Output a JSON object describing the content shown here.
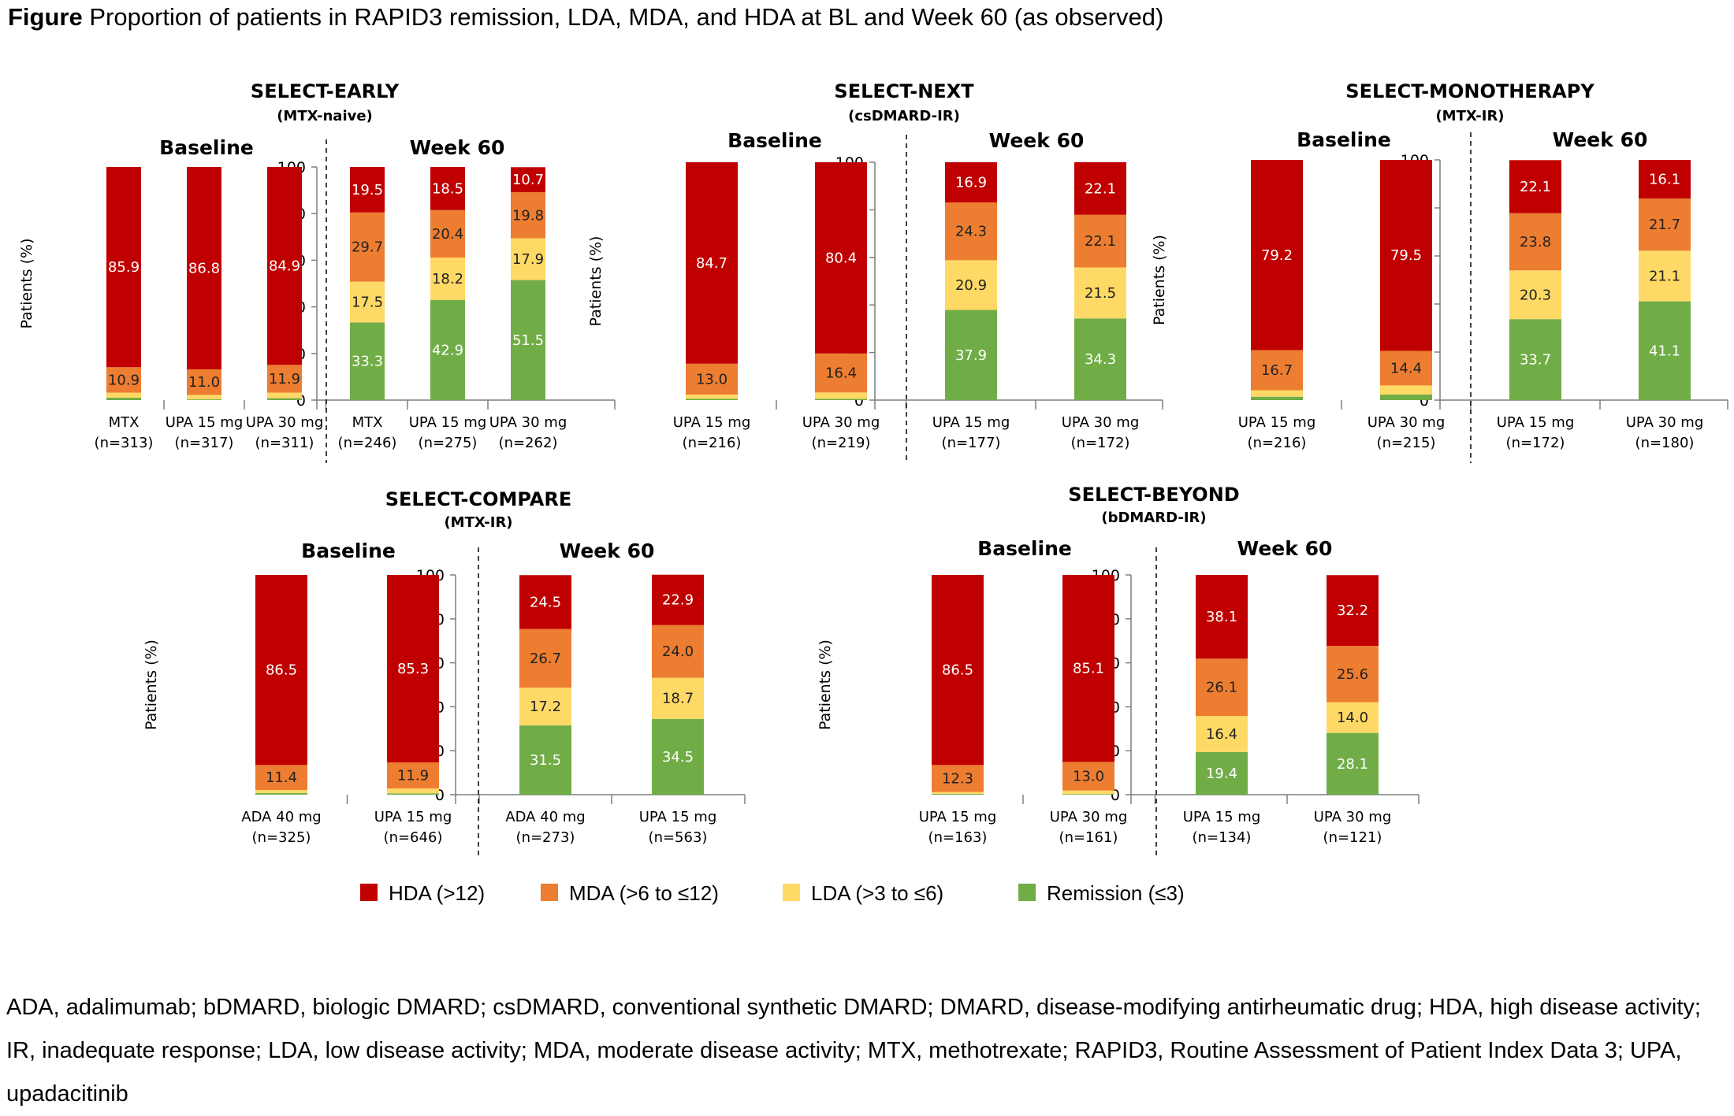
{
  "figure": {
    "label": "Figure",
    "title": "Proportion of patients in RAPID3 remission, LDA, MDA, and HDA at BL and Week 60 (as observed)"
  },
  "legend": [
    {
      "name": "HDA (>12)",
      "color": "#c00000"
    },
    {
      "name": "MDA (>6 to ≤12)",
      "color": "#ed7d31"
    },
    {
      "name": "LDA (>3 to ≤6)",
      "color": "#ffd966"
    },
    {
      "name": "Remission (≤3)",
      "color": "#70ad47"
    }
  ],
  "footnote": "ADA, adalimumab; bDMARD, biologic DMARD; csDMARD, conventional synthetic DMARD; DMARD, disease-modifying antirheumatic drug; HDA, high disease activity; IR, inadequate response; LDA, low disease activity; MDA, moderate disease activity; MTX, methotrexate; RAPID3, Routine Assessment of Patient Index Data 3; UPA, upadacitinib",
  "chart_data": [
    {
      "type": "bar",
      "stacked": true,
      "title": "SELECT-EARLY",
      "subtitle": "(MTX-naive)",
      "group_labels": [
        "Baseline",
        "Week 60"
      ],
      "ylabel": "Patients (%)",
      "ylim": [
        0,
        100
      ],
      "yticks": [
        0,
        20,
        40,
        60,
        80,
        100
      ],
      "categories": [
        {
          "name": "MTX",
          "n": "(n=313)",
          "group": "Baseline"
        },
        {
          "name": "UPA 15 mg",
          "n": "(n=317)",
          "group": "Baseline"
        },
        {
          "name": "UPA 30 mg",
          "n": "(n=311)",
          "group": "Baseline"
        },
        {
          "name": "MTX",
          "n": "(n=246)",
          "group": "Week 60"
        },
        {
          "name": "UPA 15 mg",
          "n": "(n=275)",
          "group": "Week 60"
        },
        {
          "name": "UPA 30 mg",
          "n": "(n=262)",
          "group": "Week 60"
        }
      ],
      "series": [
        {
          "name": "Remission (≤3)",
          "values": [
            1.0,
            0.3,
            0.8,
            33.3,
            42.9,
            51.5
          ],
          "labels": [
            "",
            "",
            "",
            "33.3",
            "42.9",
            "51.5"
          ]
        },
        {
          "name": "LDA (>3 to ≤6)",
          "values": [
            2.2,
            1.9,
            2.4,
            17.5,
            18.2,
            17.9
          ],
          "labels": [
            "",
            "",
            "",
            "17.5",
            "18.2",
            "17.9"
          ]
        },
        {
          "name": "MDA (>6 to ≤12)",
          "values": [
            10.9,
            11.0,
            11.9,
            29.7,
            20.4,
            19.8
          ],
          "labels": [
            "10.9",
            "11.0",
            "11.9",
            "29.7",
            "20.4",
            "19.8"
          ]
        },
        {
          "name": "HDA (>12)",
          "values": [
            85.9,
            86.8,
            84.9,
            19.5,
            18.5,
            10.7
          ],
          "labels": [
            "85.9",
            "86.8",
            "84.9",
            "19.5",
            "18.5",
            "10.7"
          ]
        }
      ]
    },
    {
      "type": "bar",
      "stacked": true,
      "title": "SELECT-NEXT",
      "subtitle": "(csDMARD-IR)",
      "group_labels": [
        "Baseline",
        "Week 60"
      ],
      "ylabel": "Patients (%)",
      "ylim": [
        0,
        100
      ],
      "yticks": [
        0,
        20,
        40,
        60,
        80,
        100
      ],
      "categories": [
        {
          "name": "UPA 15 mg",
          "n": "(n=216)",
          "group": "Baseline"
        },
        {
          "name": "UPA 30 mg",
          "n": "(n=219)",
          "group": "Baseline"
        },
        {
          "name": "UPA 15 mg",
          "n": "(n=177)",
          "group": "Week 60"
        },
        {
          "name": "UPA 30 mg",
          "n": "(n=172)",
          "group": "Week 60"
        }
      ],
      "series": [
        {
          "name": "Remission (≤3)",
          "values": [
            0.5,
            0.5,
            37.9,
            34.3
          ],
          "labels": [
            "",
            "",
            "37.9",
            "34.3"
          ]
        },
        {
          "name": "LDA (>3 to ≤6)",
          "values": [
            1.8,
            2.7,
            20.9,
            21.5
          ],
          "labels": [
            "",
            "",
            "20.9",
            "21.5"
          ]
        },
        {
          "name": "MDA (>6 to ≤12)",
          "values": [
            13.0,
            16.4,
            24.3,
            22.1
          ],
          "labels": [
            "13.0",
            "16.4",
            "24.3",
            "22.1"
          ]
        },
        {
          "name": "HDA (>12)",
          "values": [
            84.7,
            80.4,
            16.9,
            22.1
          ],
          "labels": [
            "84.7",
            "80.4",
            "16.9",
            "22.1"
          ]
        }
      ]
    },
    {
      "type": "bar",
      "stacked": true,
      "title": "SELECT-MONOTHERAPY",
      "subtitle": "(MTX-IR)",
      "group_labels": [
        "Baseline",
        "Week 60"
      ],
      "ylabel": "Patients (%)",
      "ylim": [
        0,
        100
      ],
      "yticks": [
        0,
        20,
        40,
        60,
        80,
        100
      ],
      "categories": [
        {
          "name": "UPA 15 mg",
          "n": "(n=216)",
          "group": "Baseline"
        },
        {
          "name": "UPA 30 mg",
          "n": "(n=215)",
          "group": "Baseline"
        },
        {
          "name": "UPA 15 mg",
          "n": "(n=172)",
          "group": "Week 60"
        },
        {
          "name": "UPA 30 mg",
          "n": "(n=180)",
          "group": "Week 60"
        }
      ],
      "series": [
        {
          "name": "Remission (≤3)",
          "values": [
            1.4,
            2.3,
            33.7,
            41.1
          ],
          "labels": [
            "",
            "",
            "33.7",
            "41.1"
          ]
        },
        {
          "name": "LDA (>3 to ≤6)",
          "values": [
            2.7,
            3.8,
            20.3,
            21.1
          ],
          "labels": [
            "",
            "",
            "20.3",
            "21.1"
          ]
        },
        {
          "name": "MDA (>6 to ≤12)",
          "values": [
            16.7,
            14.4,
            23.8,
            21.7
          ],
          "labels": [
            "16.7",
            "14.4",
            "23.8",
            "21.7"
          ]
        },
        {
          "name": "HDA (>12)",
          "values": [
            79.2,
            79.5,
            22.1,
            16.1
          ],
          "labels": [
            "79.2",
            "79.5",
            "22.1",
            "16.1"
          ]
        }
      ]
    },
    {
      "type": "bar",
      "stacked": true,
      "title": "SELECT-COMPARE",
      "subtitle": "(MTX-IR)",
      "group_labels": [
        "Baseline",
        "Week 60"
      ],
      "ylabel": "Patients (%)",
      "ylim": [
        0,
        100
      ],
      "yticks": [
        0,
        20,
        40,
        60,
        80,
        100
      ],
      "categories": [
        {
          "name": "ADA 40 mg",
          "n": "(n=325)",
          "group": "Baseline"
        },
        {
          "name": "UPA 15 mg",
          "n": "(n=646)",
          "group": "Baseline"
        },
        {
          "name": "ADA 40 mg",
          "n": "(n=273)",
          "group": "Week 60"
        },
        {
          "name": "UPA 15 mg",
          "n": "(n=563)",
          "group": "Week 60"
        }
      ],
      "series": [
        {
          "name": "Remission (≤3)",
          "values": [
            0.7,
            0.6,
            31.5,
            34.5
          ],
          "labels": [
            "",
            "",
            "31.5",
            "34.5"
          ]
        },
        {
          "name": "LDA (>3 to ≤6)",
          "values": [
            1.4,
            2.2,
            17.2,
            18.7
          ],
          "labels": [
            "",
            "",
            "17.2",
            "18.7"
          ]
        },
        {
          "name": "MDA (>6 to ≤12)",
          "values": [
            11.4,
            11.9,
            26.7,
            24.0
          ],
          "labels": [
            "11.4",
            "11.9",
            "26.7",
            "24.0"
          ]
        },
        {
          "name": "HDA (>12)",
          "values": [
            86.5,
            85.3,
            24.5,
            22.9
          ],
          "labels": [
            "86.5",
            "85.3",
            "24.5",
            "22.9"
          ]
        }
      ]
    },
    {
      "type": "bar",
      "stacked": true,
      "title": "SELECT-BEYOND",
      "subtitle": "(bDMARD-IR)",
      "group_labels": [
        "Baseline",
        "Week 60"
      ],
      "ylabel": "Patients (%)",
      "ylim": [
        0,
        100
      ],
      "yticks": [
        0,
        20,
        40,
        60,
        80,
        100
      ],
      "categories": [
        {
          "name": "UPA 15 mg",
          "n": "(n=163)",
          "group": "Baseline"
        },
        {
          "name": "UPA 30 mg",
          "n": "(n=161)",
          "group": "Baseline"
        },
        {
          "name": "UPA 15 mg",
          "n": "(n=134)",
          "group": "Week 60"
        },
        {
          "name": "UPA 30 mg",
          "n": "(n=121)",
          "group": "Week 60"
        }
      ],
      "series": [
        {
          "name": "Remission (≤3)",
          "values": [
            0.4,
            0.3,
            19.4,
            28.1
          ],
          "labels": [
            "",
            "",
            "19.4",
            "28.1"
          ]
        },
        {
          "name": "LDA (>3 to ≤6)",
          "values": [
            0.8,
            1.6,
            16.4,
            14.0
          ],
          "labels": [
            "",
            "",
            "16.4",
            "14.0"
          ]
        },
        {
          "name": "MDA (>6 to ≤12)",
          "values": [
            12.3,
            13.0,
            26.1,
            25.6
          ],
          "labels": [
            "12.3",
            "13.0",
            "26.1",
            "25.6"
          ]
        },
        {
          "name": "HDA (>12)",
          "values": [
            86.5,
            85.1,
            38.1,
            32.2
          ],
          "labels": [
            "86.5",
            "85.1",
            "38.1",
            "32.2"
          ]
        }
      ]
    }
  ]
}
